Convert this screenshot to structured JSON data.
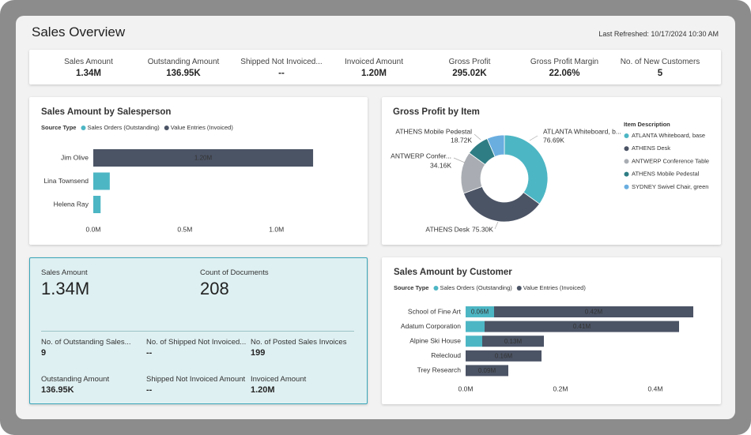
{
  "header": {
    "title": "Sales Overview",
    "last_refreshed": "Last Refreshed: 10/17/2024 10:30 AM"
  },
  "kpis": [
    {
      "label": "Sales Amount",
      "value": "1.34M"
    },
    {
      "label": "Outstanding Amount",
      "value": "136.95K"
    },
    {
      "label": "Shipped Not Invoiced...",
      "value": "--"
    },
    {
      "label": "Invoiced Amount",
      "value": "1.20M"
    },
    {
      "label": "Gross Profit",
      "value": "295.02K"
    },
    {
      "label": "Gross Profit Margin",
      "value": "22.06%"
    },
    {
      "label": "No. of New Customers",
      "value": "5"
    }
  ],
  "card": {
    "items": [
      {
        "label": "Sales Amount",
        "value": "1.34M"
      },
      {
        "label": "Count of Documents",
        "value": "208"
      },
      {
        "label": "No. of Outstanding Sales...",
        "value": "9"
      },
      {
        "label": "No. of Shipped Not Invoiced...",
        "value": "--"
      },
      {
        "label": "No. of Posted Sales Invoices",
        "value": "199"
      },
      {
        "label": "Outstanding Amount",
        "value": "136.95K"
      },
      {
        "label": "Shipped Not Invoiced Amount",
        "value": "--"
      },
      {
        "label": "Invoiced Amount",
        "value": "1.20M"
      }
    ]
  },
  "chart_data": [
    {
      "type": "bar",
      "orientation": "horizontal",
      "stacked": true,
      "title": "Sales Amount by Salesperson",
      "legend_title": "Source Type",
      "categories": [
        "Jim Olive",
        "Lina Townsend",
        "Helena Ray"
      ],
      "series": [
        {
          "name": "Sales Orders (Outstanding)",
          "color": "#4db6c4",
          "values": [
            0,
            0.09,
            0.04
          ],
          "value_labels": [
            null,
            null,
            null
          ]
        },
        {
          "name": "Value Entries (Invoiced)",
          "color": "#4b5465",
          "values": [
            1.2,
            0,
            0
          ],
          "value_labels": [
            "1.20M",
            null,
            null
          ]
        }
      ],
      "xlim": [
        0,
        1.45
      ],
      "xticks": [
        {
          "value": 0,
          "label": "0.0M"
        },
        {
          "value": 0.5,
          "label": "0.5M"
        },
        {
          "value": 1,
          "label": "1.0M"
        }
      ]
    },
    {
      "type": "pie",
      "donut": true,
      "title": "Gross Profit by Item",
      "legend_title": "Item Description",
      "categories": [
        "ATLANTA Whiteboard, base",
        "ATHENS Desk",
        "ANTWERP Conference Table",
        "ATHENS Mobile Pedestal",
        "SYDNEY Swivel Chair, green"
      ],
      "slice_labels": [
        "ATLANTA Whiteboard, b...",
        "ATHENS Desk",
        "ANTWERP Confer...",
        "ATHENS Mobile Pedestal",
        null
      ],
      "values": [
        76.69,
        75.3,
        34.16,
        18.72,
        14.2
      ],
      "value_labels": [
        "76.69K",
        "75.30K",
        "34.16K",
        "18.72K",
        null
      ],
      "colors": [
        "#4db6c4",
        "#4b5465",
        "#a9adb3",
        "#2e7d84",
        "#6aaee0"
      ]
    },
    {
      "type": "bar",
      "orientation": "horizontal",
      "stacked": true,
      "title": "Sales Amount by Customer",
      "legend_title": "Source Type",
      "categories": [
        "School of Fine Art",
        "Adatum Corporation",
        "Alpine Ski House",
        "Relecloud",
        "Trey Research"
      ],
      "series": [
        {
          "name": "Sales Orders (Outstanding)",
          "color": "#4db6c4",
          "values": [
            0.06,
            0.04,
            0.035,
            0,
            0
          ],
          "value_labels": [
            "0.06M",
            null,
            null,
            null,
            null
          ]
        },
        {
          "name": "Value Entries (Invoiced)",
          "color": "#4b5465",
          "values": [
            0.42,
            0.41,
            0.13,
            0.16,
            0.09
          ],
          "value_labels": [
            "0.42M",
            "0.41M",
            "0.13M",
            "0.16M",
            "0.09M"
          ]
        }
      ],
      "xlim": [
        0,
        0.5
      ],
      "xticks": [
        {
          "value": 0,
          "label": "0.0M"
        },
        {
          "value": 0.2,
          "label": "0.2M"
        },
        {
          "value": 0.4,
          "label": "0.4M"
        }
      ]
    }
  ]
}
